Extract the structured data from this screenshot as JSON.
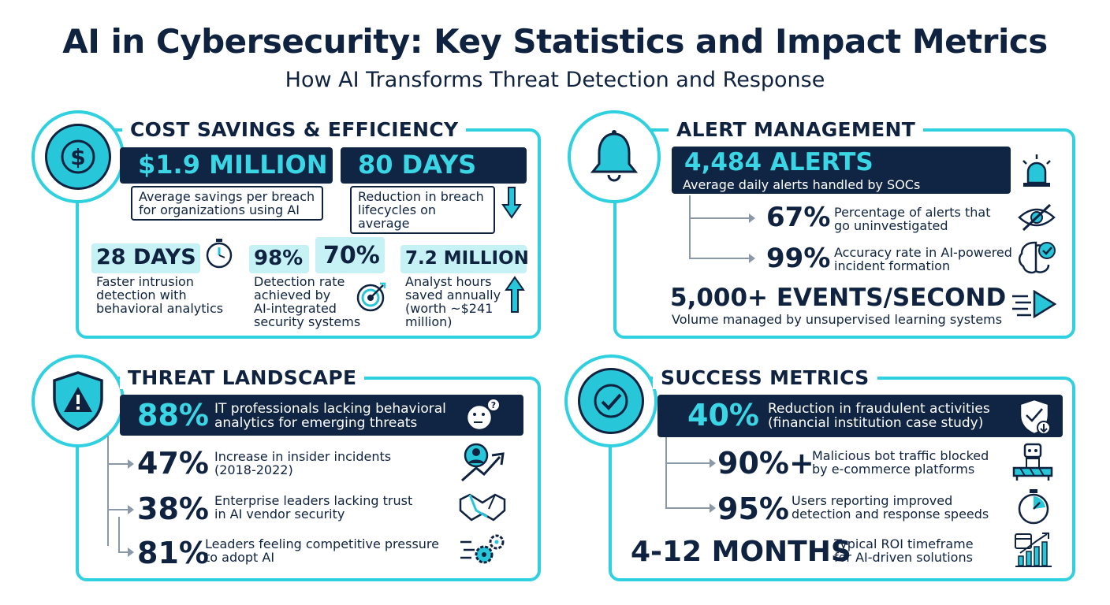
{
  "title": "AI in Cybersecurity: Key Statistics and Impact Metrics",
  "subtitle": "How AI Transforms Threat Detection and Response",
  "cost": {
    "heading": "COST SAVINGS & EFFICIENCY",
    "icon": "dollar-icon",
    "big1": "$1.9 MILLION",
    "desc1": [
      "Average savings per breach",
      "for organizations using AI"
    ],
    "big2": "80 DAYS",
    "desc2": [
      "Reduction in breach",
      "lifecycles on average"
    ],
    "stat3_value": "28 DAYS",
    "stat3_desc": [
      "Faster intrusion",
      "detection with",
      "behavioral analytics"
    ],
    "stat4_value_a": "98%",
    "stat4_value_b": "70%",
    "stat4_desc": [
      "Detection rate",
      "achieved by",
      "AI-integrated",
      "security systems"
    ],
    "stat5_value": "7.2 MILLION",
    "stat5_desc": [
      "Analyst hours",
      "saved annually",
      "(worth ~$241",
      "million)"
    ]
  },
  "alerts": {
    "heading": "ALERT MANAGEMENT",
    "icon": "bell-icon",
    "big": "4,484 ALERTS",
    "big_desc": "Average daily alerts handled by SOCs",
    "sub1_value": "67%",
    "sub1_desc": [
      "Percentage of alerts that",
      "go uninvestigated"
    ],
    "sub2_value": "99%",
    "sub2_desc": [
      "Accuracy rate in AI-powered",
      "incident formation"
    ],
    "events_value": "5,000+ EVENTS/SECOND",
    "events_desc": "Volume managed by unsupervised learning systems"
  },
  "threat": {
    "heading": "THREAT LANDSCAPE",
    "icon": "shield-warning-icon",
    "big": "88%",
    "big_desc": [
      "IT professionals lacking behavioral",
      "analytics for emerging threats"
    ],
    "items": [
      {
        "value": "47%",
        "desc": [
          "Increase in insider incidents",
          "(2018-2022)"
        ]
      },
      {
        "value": "38%",
        "desc": [
          "Enterprise leaders lacking trust",
          "in AI vendor security"
        ]
      },
      {
        "value": "81%",
        "desc": [
          "Leaders feeling competitive pressure",
          "to adopt AI"
        ]
      }
    ]
  },
  "success": {
    "heading": "SUCCESS METRICS",
    "icon": "checkmark-icon",
    "big": "40%",
    "big_desc": [
      "Reduction in fraudulent activities",
      "(financial institution case study)"
    ],
    "items": [
      {
        "value": "90%+",
        "desc": [
          "Malicious bot traffic blocked",
          "by e-commerce platforms"
        ]
      },
      {
        "value": "95%",
        "desc": [
          "Users reporting improved",
          "detection and response speeds"
        ]
      }
    ],
    "roi_value": "4-12 MONTHS",
    "roi_desc": [
      "Typical ROI timeframe",
      "for AI-driven solutions"
    ]
  },
  "colors": {
    "navy": "#102544",
    "cyan": "#2fd0df",
    "light_cyan": "#c6f1f5"
  }
}
